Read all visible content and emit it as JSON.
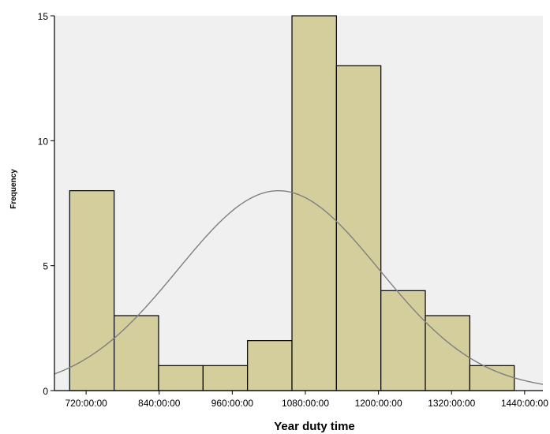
{
  "chart_data": {
    "type": "bar",
    "subtype": "histogram",
    "xlabel": "Year duty time",
    "ylabel": "Frequency",
    "x_unit_note": "hours:minutes:seconds",
    "bins": [
      {
        "start": 693,
        "end": 766,
        "count": 8
      },
      {
        "start": 766,
        "end": 839,
        "count": 3
      },
      {
        "start": 839,
        "end": 912,
        "count": 1
      },
      {
        "start": 912,
        "end": 985,
        "count": 1
      },
      {
        "start": 985,
        "end": 1058,
        "count": 2
      },
      {
        "start": 1058,
        "end": 1131,
        "count": 15
      },
      {
        "start": 1131,
        "end": 1204,
        "count": 13
      },
      {
        "start": 1204,
        "end": 1277,
        "count": 4
      },
      {
        "start": 1277,
        "end": 1350,
        "count": 3
      },
      {
        "start": 1350,
        "end": 1423,
        "count": 1
      }
    ],
    "normal_curve": {
      "mean": 1036,
      "sd": 165,
      "peak": 8.0
    },
    "xlim": [
      668,
      1470
    ],
    "ylim": [
      0,
      15
    ],
    "x_ticks": [
      {
        "value": 720,
        "label": "720:00:00"
      },
      {
        "value": 840,
        "label": "840:00:00"
      },
      {
        "value": 960,
        "label": "960:00:00"
      },
      {
        "value": 1080,
        "label": "1080:00:00"
      },
      {
        "value": 1200,
        "label": "1200:00:00"
      },
      {
        "value": 1320,
        "label": "1320:00:00"
      },
      {
        "value": 1440,
        "label": "1440:00:00"
      }
    ],
    "y_ticks": [
      {
        "value": 0,
        "label": "0"
      },
      {
        "value": 5,
        "label": "5"
      },
      {
        "value": 10,
        "label": "10"
      },
      {
        "value": 15,
        "label": "15"
      }
    ],
    "grid": false,
    "legend": "none",
    "colors": {
      "bar_fill": "#d3ce9c",
      "bar_stroke": "#000000",
      "plot_background": "#f0f0f0",
      "curve": "#7f7f7f",
      "axis": "#000000"
    }
  }
}
